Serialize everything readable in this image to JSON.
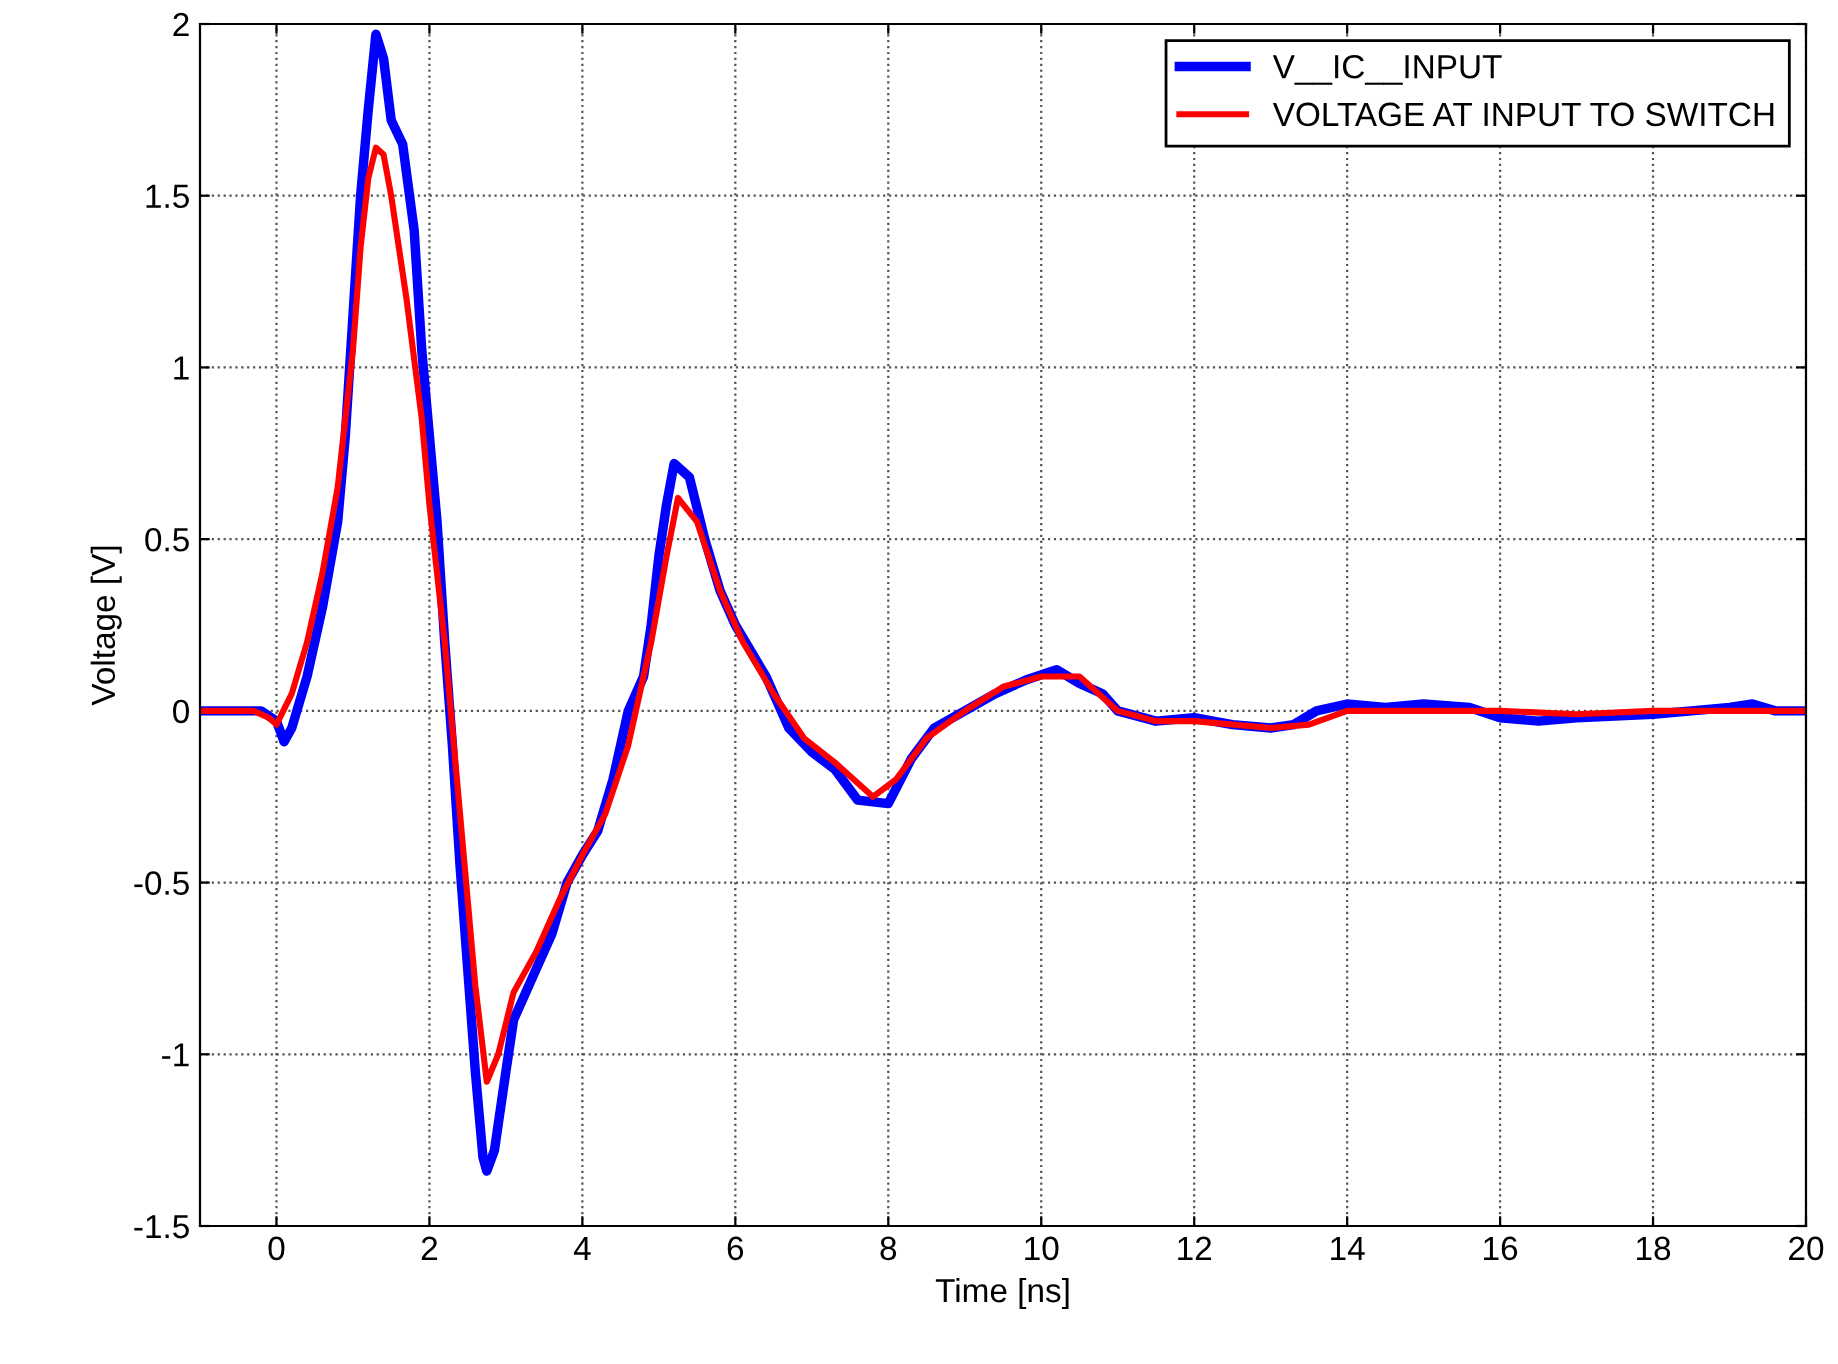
{
  "chart_data": {
    "type": "line",
    "xlabel": "Time [ns]",
    "ylabel": "Voltage [V]",
    "xlim": [
      -1,
      20
    ],
    "ylim": [
      -1.5,
      2
    ],
    "xticks": [
      0,
      2,
      4,
      6,
      8,
      10,
      12,
      14,
      16,
      18,
      20
    ],
    "yticks": [
      -1.5,
      -1,
      -0.5,
      0,
      0.5,
      1,
      1.5,
      2
    ],
    "grid": true,
    "legend": "top right",
    "line_style": "solid",
    "marker": "none",
    "series": [
      {
        "name": "V__IC__INPUT",
        "color": "#0000ff",
        "x": [
          -1,
          -0.2,
          0,
          0.1,
          0.2,
          0.4,
          0.6,
          0.8,
          0.9,
          1.0,
          1.1,
          1.2,
          1.3,
          1.4,
          1.5,
          1.65,
          1.8,
          1.9,
          2.0,
          2.1,
          2.2,
          2.3,
          2.4,
          2.5,
          2.6,
          2.7,
          2.75,
          2.85,
          3.0,
          3.1,
          3.4,
          3.6,
          3.8,
          4.0,
          4.2,
          4.4,
          4.6,
          4.8,
          4.9,
          5.0,
          5.1,
          5.2,
          5.4,
          5.6,
          5.8,
          6.0,
          6.4,
          6.7,
          7.0,
          7.3,
          7.6,
          8.0,
          8.3,
          8.6,
          9.0,
          9.4,
          9.8,
          10.2,
          10.5,
          10.8,
          11.0,
          11.5,
          12.0,
          12.5,
          13.0,
          13.3,
          13.6,
          14.0,
          14.5,
          15.0,
          15.6,
          16.0,
          16.5,
          17,
          18,
          18.5,
          19,
          19.3,
          19.6,
          20
        ],
        "values": [
          0,
          0,
          -0.03,
          -0.09,
          -0.05,
          0.1,
          0.3,
          0.55,
          0.8,
          1.15,
          1.5,
          1.75,
          1.97,
          1.9,
          1.72,
          1.65,
          1.4,
          1.05,
          0.8,
          0.55,
          0.2,
          -0.1,
          -0.45,
          -0.75,
          -1.05,
          -1.3,
          -1.34,
          -1.28,
          -1.05,
          -0.9,
          -0.75,
          -0.65,
          -0.5,
          -0.42,
          -0.35,
          -0.2,
          0.0,
          0.1,
          0.25,
          0.45,
          0.6,
          0.72,
          0.68,
          0.5,
          0.35,
          0.25,
          0.1,
          -0.05,
          -0.12,
          -0.17,
          -0.26,
          -0.27,
          -0.14,
          -0.05,
          0.0,
          0.05,
          0.09,
          0.12,
          0.08,
          0.05,
          0.0,
          -0.03,
          -0.02,
          -0.04,
          -0.05,
          -0.04,
          0.0,
          0.02,
          0.01,
          0.02,
          0.01,
          -0.02,
          -0.03,
          -0.02,
          -0.01,
          0.0,
          0.01,
          0.02,
          0.0,
          0.0
        ]
      },
      {
        "name": "VOLTAGE AT INPUT TO SWITCH",
        "color": "#ff0000",
        "x": [
          -1,
          -0.3,
          -0.1,
          0.0,
          0.2,
          0.4,
          0.6,
          0.8,
          1.0,
          1.1,
          1.2,
          1.3,
          1.4,
          1.5,
          1.7,
          1.9,
          2.0,
          2.2,
          2.4,
          2.6,
          2.75,
          2.9,
          3.1,
          3.4,
          3.7,
          4.0,
          4.3,
          4.6,
          4.9,
          5.1,
          5.25,
          5.5,
          5.8,
          6.1,
          6.5,
          6.9,
          7.3,
          7.8,
          8.1,
          8.5,
          9.0,
          9.5,
          10.0,
          10.5,
          11.0,
          11.5,
          12.0,
          13.0,
          13.5,
          14.0,
          15.0,
          16.0,
          17.0,
          18.0,
          19.0,
          20
        ],
        "values": [
          0,
          0,
          -0.02,
          -0.04,
          0.05,
          0.2,
          0.4,
          0.65,
          1.05,
          1.35,
          1.55,
          1.64,
          1.62,
          1.5,
          1.2,
          0.85,
          0.6,
          0.2,
          -0.3,
          -0.8,
          -1.08,
          -1.0,
          -0.82,
          -0.7,
          -0.55,
          -0.42,
          -0.3,
          -0.1,
          0.2,
          0.45,
          0.62,
          0.55,
          0.35,
          0.2,
          0.05,
          -0.08,
          -0.15,
          -0.25,
          -0.2,
          -0.08,
          0.0,
          0.07,
          0.1,
          0.1,
          0.0,
          -0.03,
          -0.03,
          -0.05,
          -0.04,
          0.0,
          0.0,
          0.0,
          -0.01,
          0.0,
          0.0,
          0.0
        ]
      }
    ]
  }
}
